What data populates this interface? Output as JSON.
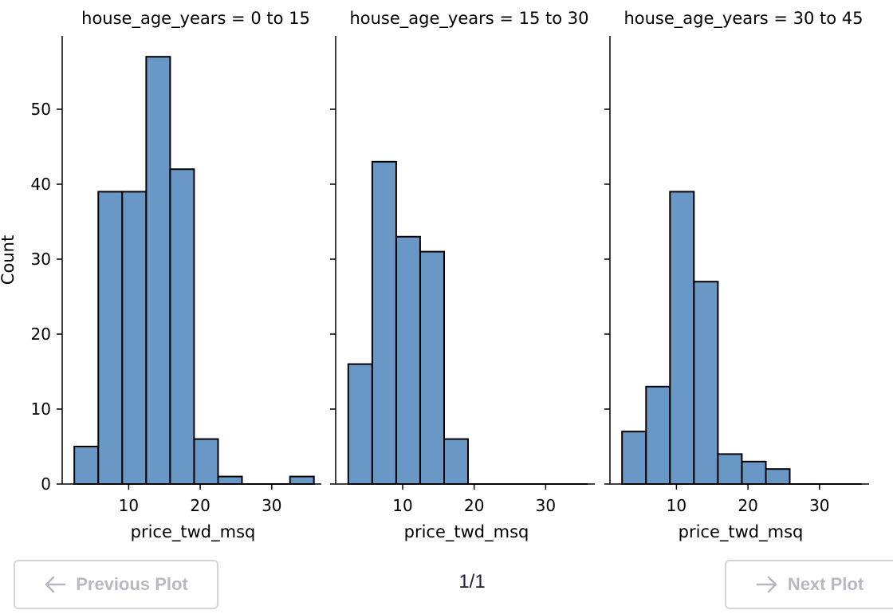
{
  "chart_data": {
    "type": "bar",
    "ylabel": "Count",
    "ylim": [
      0,
      60
    ],
    "yticks": [
      0,
      10,
      20,
      30,
      40,
      50
    ],
    "xlim": [
      0,
      37
    ],
    "xticks": [
      10,
      20,
      30
    ],
    "bin_edges": [
      2.4,
      5.75,
      9.1,
      12.45,
      15.8,
      19.15,
      22.5,
      25.85,
      29.2,
      32.55,
      35.9
    ],
    "panels": [
      {
        "title": "house_age_years = 0 to 15",
        "xlabel": "price_twd_msq",
        "values": [
          5,
          39,
          39,
          57,
          42,
          6,
          1,
          0,
          0,
          1
        ]
      },
      {
        "title": "house_age_years = 15 to 30",
        "xlabel": "price_twd_msq",
        "values": [
          16,
          43,
          33,
          31,
          6,
          0,
          0,
          0,
          0,
          0
        ]
      },
      {
        "title": "house_age_years = 30 to 45",
        "xlabel": "price_twd_msq",
        "values": [
          7,
          13,
          39,
          27,
          4,
          3,
          2,
          0,
          0,
          0
        ]
      }
    ]
  },
  "navigation": {
    "prev_label": "Previous Plot",
    "next_label": "Next Plot",
    "page_indicator": "1/1"
  },
  "colors": {
    "bar_fill": "#6a98c6",
    "bar_edge": "#000000",
    "button_text": "#b8b8c2",
    "button_border": "#d4d4da"
  }
}
